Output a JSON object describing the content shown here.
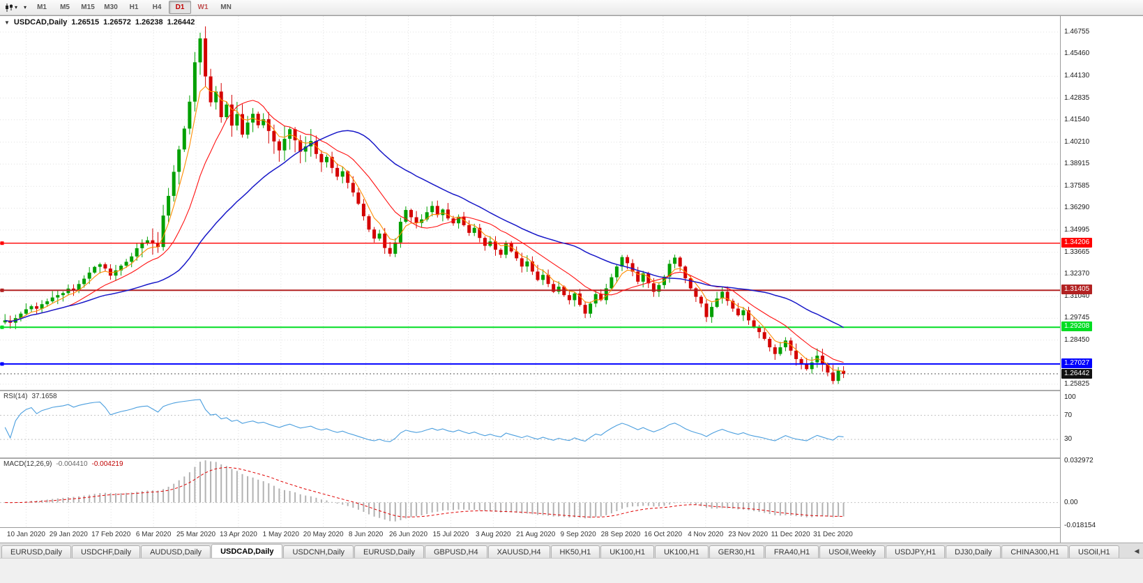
{
  "toolbar": {
    "timeframes": [
      "M1",
      "M5",
      "M15",
      "M30",
      "H1",
      "H4",
      "D1",
      "W1",
      "MN"
    ],
    "active_timeframe": "D1",
    "highlighted_timeframe": "W1"
  },
  "chart": {
    "symbol_title": "USDCAD,Daily",
    "title_caret": "▼",
    "ohlc": {
      "open": "1.26515",
      "high": "1.26572",
      "low": "1.26238",
      "close": "1.26442"
    }
  },
  "chart_data": {
    "type": "candlestick",
    "symbol": "USDCAD",
    "period": "Daily",
    "y_domain": [
      1.2549,
      1.4771
    ],
    "y_ticks": [
      1.46755,
      1.4546,
      1.4413,
      1.42835,
      1.4154,
      1.4021,
      1.38915,
      1.37585,
      1.3629,
      1.34995,
      1.33665,
      1.3237,
      1.3104,
      1.29745,
      1.2845,
      1.25825
    ],
    "x_labels": [
      "10 Jan 2020",
      "29 Jan 2020",
      "17 Feb 2020",
      "6 Mar 2020",
      "25 Mar 2020",
      "13 Apr 2020",
      "1 May 2020",
      "20 May 2020",
      "8 Jun 2020",
      "26 Jun 2020",
      "15 Jul 2020",
      "3 Aug 2020",
      "21 Aug 2020",
      "9 Sep 2020",
      "28 Sep 2020",
      "16 Oct 2020",
      "4 Nov 2020",
      "23 Nov 2020",
      "11 Dec 2020",
      "31 Dec 2020"
    ],
    "candles": {
      "first_open": 1.295,
      "peak_high": 1.4672,
      "trough_low": 1.2583,
      "close": [
        1.2962,
        1.2948,
        1.2975,
        1.3002,
        1.3028,
        1.3046,
        1.3031,
        1.3058,
        1.3075,
        1.3098,
        1.3112,
        1.3124,
        1.3151,
        1.3142,
        1.3178,
        1.321,
        1.3246,
        1.328,
        1.3295,
        1.327,
        1.3228,
        1.3259,
        1.3287,
        1.331,
        1.3342,
        1.3391,
        1.3424,
        1.3438,
        1.3419,
        1.3398,
        1.3585,
        1.3702,
        1.3845,
        1.3978,
        1.4102,
        1.4262,
        1.4496,
        1.4638,
        1.4412,
        1.4258,
        1.4322,
        1.417,
        1.4245,
        1.412,
        1.4188,
        1.4066,
        1.4138,
        1.419,
        1.4122,
        1.4158,
        1.4088,
        1.4026,
        1.3972,
        1.4041,
        1.4098,
        1.4032,
        1.3965,
        1.3996,
        1.4028,
        1.3951,
        1.3902,
        1.3934,
        1.3868,
        1.3816,
        1.3848,
        1.3779,
        1.3722,
        1.3655,
        1.3581,
        1.3502,
        1.3448,
        1.3478,
        1.3392,
        1.3358,
        1.3425,
        1.3548,
        1.3618,
        1.3575,
        1.3541,
        1.3562,
        1.3605,
        1.3642,
        1.3588,
        1.3621,
        1.3568,
        1.3539,
        1.3578,
        1.3528,
        1.3482,
        1.3512,
        1.3452,
        1.3405,
        1.3431,
        1.3382,
        1.3352,
        1.3418,
        1.3372,
        1.3331,
        1.3282,
        1.3312,
        1.3252,
        1.3202,
        1.3232,
        1.3178,
        1.3132,
        1.3162,
        1.3112,
        1.3082,
        1.3122,
        1.3054,
        1.3002,
        1.3062,
        1.3118,
        1.3082,
        1.3152,
        1.3218,
        1.3282,
        1.3338,
        1.3302,
        1.3252,
        1.3192,
        1.3242,
        1.3182,
        1.3132,
        1.3172,
        1.3222,
        1.3298,
        1.3335,
        1.3282,
        1.3212,
        1.3152,
        1.3102,
        1.3062,
        1.2982,
        1.3042,
        1.3092,
        1.3132,
        1.3078,
        1.3032,
        1.2992,
        1.3022,
        1.2962,
        1.2922,
        1.2892,
        1.2852,
        1.2802,
        1.2762,
        1.2802,
        1.2842,
        1.2782,
        1.2732,
        1.2702,
        1.2672,
        1.2712,
        1.2752,
        1.2702,
        1.2652,
        1.2602,
        1.2662,
        1.26442
      ]
    },
    "up_color": "#00a000",
    "down_color": "#d40000",
    "grid_color": "#e0e0e0",
    "moving_averages": [
      {
        "name": "fast",
        "period": 5,
        "type": "ema",
        "color": "#ff8c00"
      },
      {
        "name": "medium",
        "period": 13,
        "type": "sma",
        "color": "#ff1010"
      },
      {
        "name": "slow",
        "period": 34,
        "type": "sma",
        "color": "#1818c8"
      }
    ],
    "hlines": [
      {
        "value": 1.34206,
        "color": "#ff0000",
        "width": 1.4
      },
      {
        "value": 1.31405,
        "color": "#b22222",
        "width": 2
      },
      {
        "value": 1.29208,
        "color": "#00dd22",
        "width": 2
      },
      {
        "value": 1.27027,
        "color": "#0000ff",
        "width": 2
      }
    ],
    "current_price": 1.26442,
    "current_price_badge_color": "#111111",
    "rsi": {
      "label": "RSI(14)",
      "value": "37.1658",
      "period": 14,
      "levels": [
        100,
        70,
        30
      ],
      "y_domain": [
        0,
        110
      ],
      "color": "#4a9ede"
    },
    "macd": {
      "label": "MACD(12,26,9)",
      "fast": 12,
      "slow": 26,
      "signal": 9,
      "main_value": "-0.004410",
      "signal_value": "-0.004219",
      "scale_labels": [
        {
          "text": "0.032972",
          "value": 0.032972
        },
        {
          "text": "0.00",
          "value": 0
        },
        {
          "text": "-0.018154",
          "value": -0.018154
        }
      ],
      "y_domain": [
        -0.0195,
        0.0345
      ],
      "hist_color": "#b2b2b2",
      "signal_color": "#e00000"
    }
  },
  "tabs": {
    "active_index": 3,
    "scroll_left_arrow": "◀",
    "items": [
      {
        "label": "EURUSD,Daily"
      },
      {
        "label": "USDCHF,Daily"
      },
      {
        "label": "AUDUSD,Daily"
      },
      {
        "label": "USDCAD,Daily"
      },
      {
        "label": "USDCNH,Daily"
      },
      {
        "label": "EURUSD,Daily"
      },
      {
        "label": "GBPUSD,H4"
      },
      {
        "label": "XAUUSD,H4"
      },
      {
        "label": "HK50,H1"
      },
      {
        "label": "UK100,H1"
      },
      {
        "label": "UK100,H1"
      },
      {
        "label": "GER30,H1"
      },
      {
        "label": "FRA40,H1"
      },
      {
        "label": "USOil,Weekly"
      },
      {
        "label": "USDJPY,H1"
      },
      {
        "label": "DJ30,Daily"
      },
      {
        "label": "CHINA300,H1"
      },
      {
        "label": "USOil,H1"
      }
    ]
  }
}
